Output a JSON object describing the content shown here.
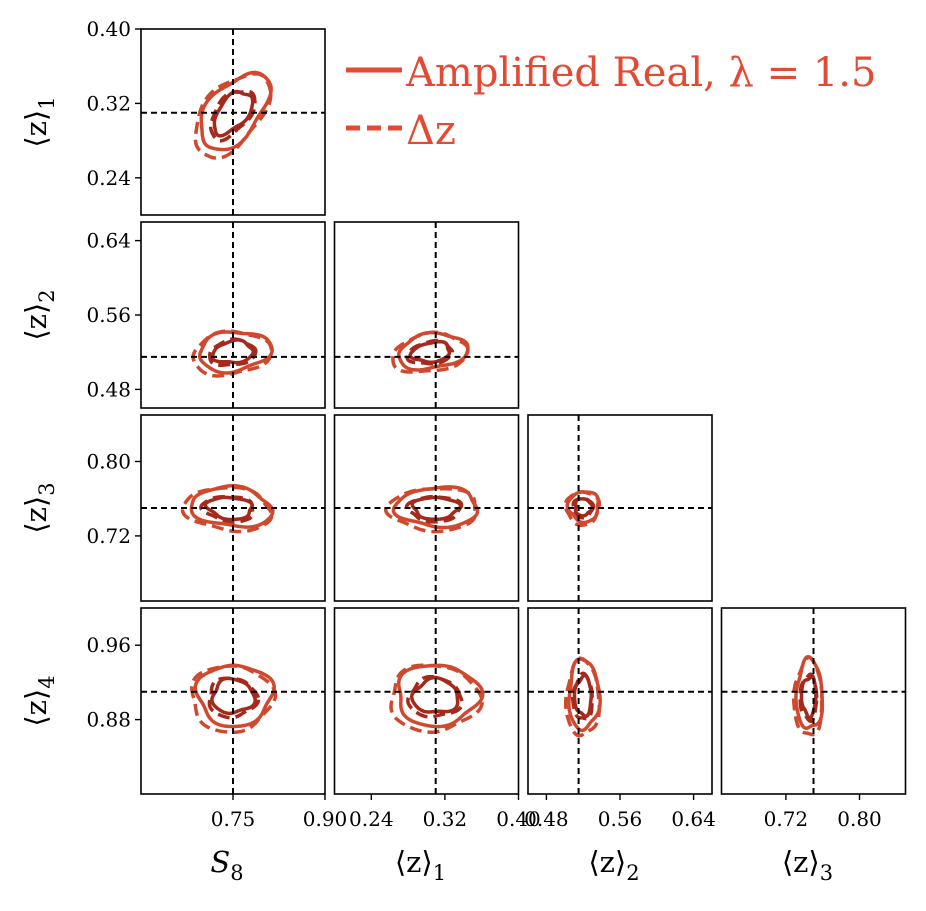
{
  "chart_data": {
    "type": "contour",
    "legend": [
      {
        "label": "Amplified Real, λ = 1.5",
        "style": "solid",
        "color": "#e34a33"
      },
      {
        "label": "Δz",
        "style": "dashed",
        "color": "#e34a33"
      }
    ],
    "contour_colors": {
      "outer": "#d0492f",
      "inner": "#a52a1c"
    },
    "parameters": [
      {
        "key": "s8",
        "label": "S",
        "sub": "8",
        "truth": 0.75,
        "range": [
          0.6,
          0.9
        ],
        "ticks": [
          "0.75",
          "0.90"
        ],
        "tick_values": [
          0.75,
          0.9
        ]
      },
      {
        "key": "z1",
        "label": "⟨z⟩",
        "sub": "1",
        "truth": 0.31,
        "range": [
          0.2,
          0.4
        ],
        "ticks": [
          "0.24",
          "0.32",
          "0.40"
        ],
        "tick_values": [
          0.24,
          0.32,
          0.4
        ]
      },
      {
        "key": "z2",
        "label": "⟨z⟩",
        "sub": "2",
        "truth": 0.515,
        "range": [
          0.46,
          0.66
        ],
        "ticks": [
          "0.48",
          "0.56",
          "0.64"
        ],
        "tick_values": [
          0.48,
          0.56,
          0.64
        ]
      },
      {
        "key": "z3",
        "label": "⟨z⟩",
        "sub": "3",
        "truth": 0.75,
        "range": [
          0.65,
          0.85
        ],
        "ticks": [
          "0.72",
          "0.80"
        ],
        "tick_values": [
          0.72,
          0.8
        ]
      },
      {
        "key": "z4",
        "label": "⟨z⟩",
        "sub": "4",
        "truth": 0.91,
        "range": [
          0.8,
          1.0
        ],
        "ticks": [
          "0.88",
          "0.96"
        ],
        "tick_values": [
          0.88,
          0.96
        ]
      }
    ],
    "panels": [
      {
        "x": "s8",
        "y": "z1",
        "cx": 0.75,
        "cy": 0.31,
        "sx": 0.024,
        "sy": 0.015,
        "tilt": 0.6
      },
      {
        "x": "s8",
        "y": "z2",
        "cx": 0.75,
        "cy": 0.52,
        "sx": 0.025,
        "sy": 0.009,
        "tilt": 0.15
      },
      {
        "x": "z1",
        "y": "z2",
        "cx": 0.305,
        "cy": 0.52,
        "sx": 0.016,
        "sy": 0.008,
        "tilt": 0.2
      },
      {
        "x": "s8",
        "y": "z3",
        "cx": 0.745,
        "cy": 0.75,
        "sx": 0.028,
        "sy": 0.009,
        "tilt": -0.15
      },
      {
        "x": "z1",
        "y": "z3",
        "cx": 0.31,
        "cy": 0.75,
        "sx": 0.019,
        "sy": 0.009,
        "tilt": 0.0
      },
      {
        "x": "z2",
        "y": "z3",
        "cx": 0.52,
        "cy": 0.751,
        "sx": 0.007,
        "sy": 0.007,
        "tilt": 0.0
      },
      {
        "x": "s8",
        "y": "z4",
        "cx": 0.75,
        "cy": 0.905,
        "sx": 0.026,
        "sy": 0.014,
        "tilt": 0.0
      },
      {
        "x": "z1",
        "y": "z4",
        "cx": 0.31,
        "cy": 0.905,
        "sx": 0.019,
        "sy": 0.014,
        "tilt": 0.0
      },
      {
        "x": "z2",
        "y": "z4",
        "cx": 0.52,
        "cy": 0.905,
        "sx": 0.007,
        "sy": 0.016,
        "tilt": 0.0
      },
      {
        "x": "z3",
        "y": "z4",
        "cx": 0.745,
        "cy": 0.905,
        "sx": 0.006,
        "sy": 0.016,
        "tilt": 0.0
      }
    ]
  }
}
